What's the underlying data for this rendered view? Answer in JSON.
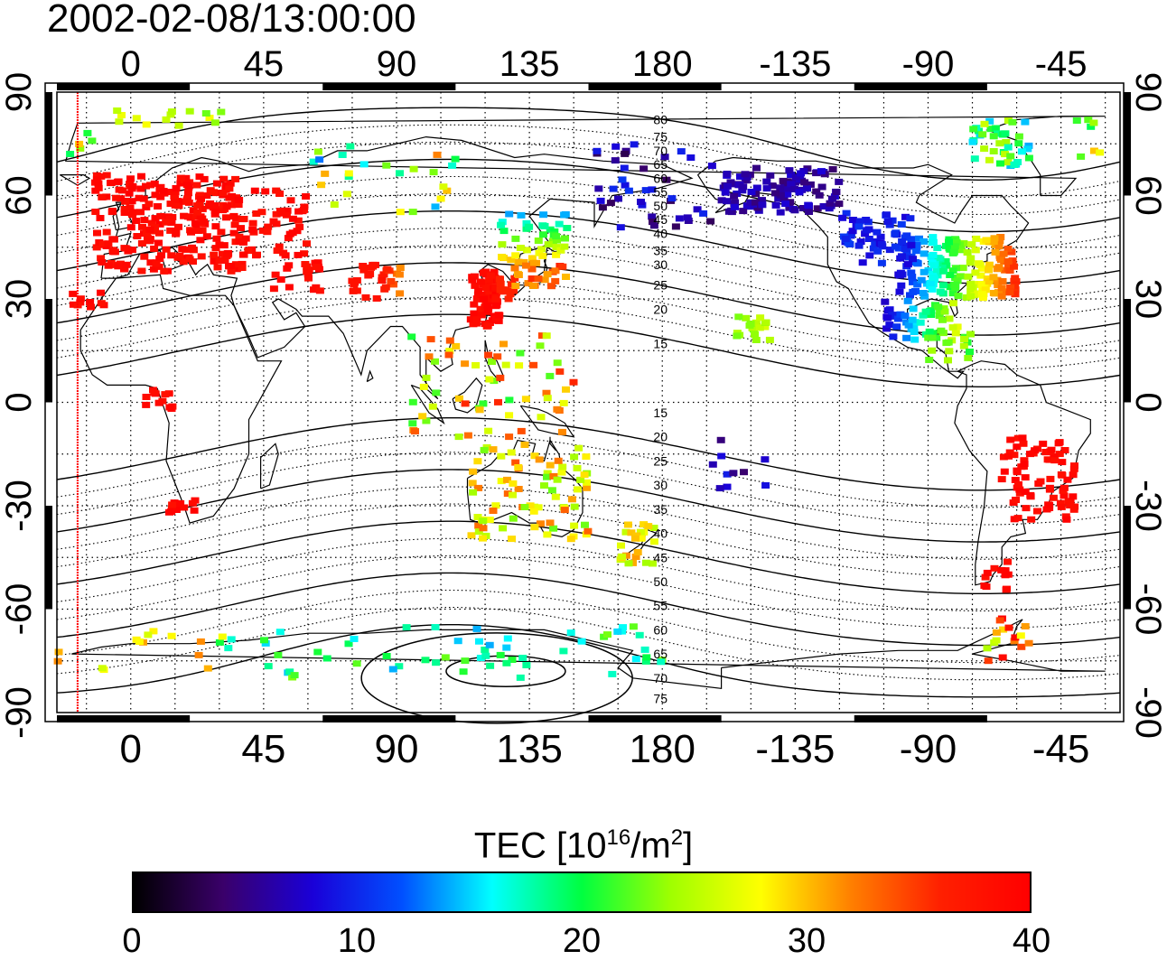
{
  "title": "2002-02-08/13:00:00",
  "axes": {
    "lon_ticks_top": [
      "0",
      "45",
      "90",
      "135",
      "180",
      "-135",
      "-90",
      "-45"
    ],
    "lon_ticks_bottom": [
      "0",
      "45",
      "90",
      "135",
      "180",
      "-135",
      "-90",
      "-45"
    ],
    "lat_ticks_left": [
      "90",
      "60",
      "30",
      "0",
      "-30",
      "-60",
      "-90"
    ],
    "lat_ticks_right": [
      "90",
      "60",
      "30",
      "0",
      "-30",
      "-60",
      "-90"
    ],
    "lon_range": [
      -25,
      335
    ],
    "lat_range": [
      -90,
      90
    ],
    "grid": "dotted every 15 degrees"
  },
  "contour_labels": [
    "80",
    "75",
    "70",
    "65",
    "60",
    "55",
    "50",
    "45",
    "40",
    "35",
    "30",
    "25",
    "20",
    "15",
    "15",
    "20",
    "25",
    "30",
    "35",
    "40",
    "45",
    "50",
    "55",
    "60",
    "65",
    "70",
    "75"
  ],
  "colorbar": {
    "title_main": "TEC  [10",
    "title_exp1": "16",
    "title_mid": "/m",
    "title_exp2": "2",
    "title_end": "]",
    "min": 0,
    "max": 40,
    "tick_labels": [
      "0",
      "10",
      "20",
      "30",
      "40"
    ],
    "colors": [
      "#000000",
      "#3a006a",
      "#1a00d8",
      "#0050ff",
      "#00ffff",
      "#00ff40",
      "#a0ff00",
      "#ffff00",
      "#ff8000",
      "#ff2000",
      "#ff0000"
    ]
  },
  "terminator_line_color": "#ff0000"
}
